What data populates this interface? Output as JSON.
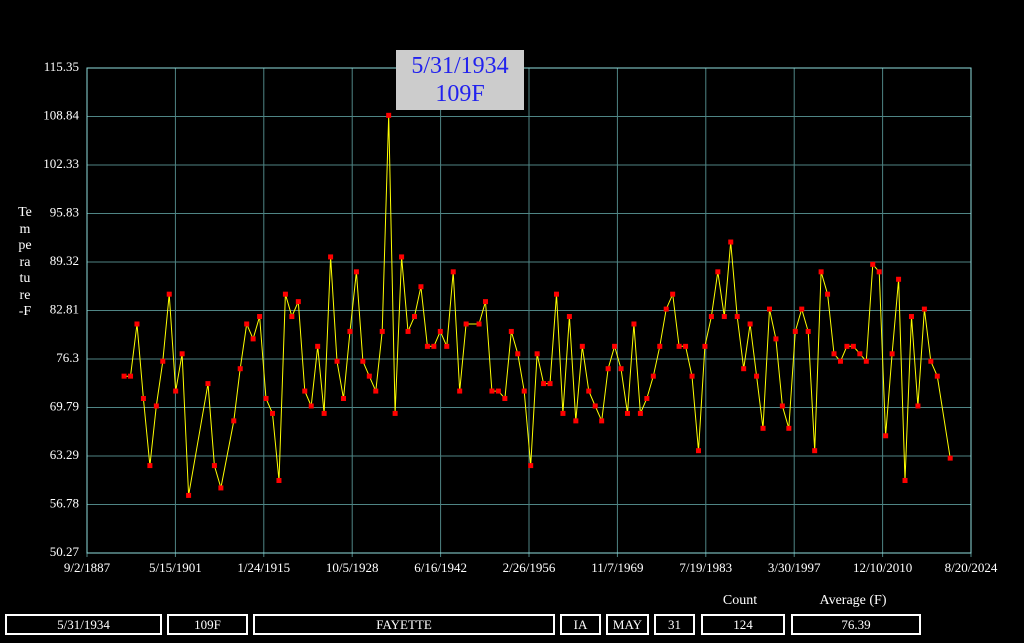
{
  "chart_data": {
    "type": "line",
    "ylabel": "Temperature-F",
    "annotation": [
      "5/31/1934",
      "109F"
    ],
    "line_color": "#ffff00",
    "marker_color": "#ff0000",
    "grid": true,
    "xlim": [
      "9/2/1887",
      "8/20/2024"
    ],
    "xticks": [
      "9/2/1887",
      "5/15/1901",
      "1/24/1915",
      "10/5/1928",
      "6/16/1942",
      "2/26/1956",
      "11/7/1969",
      "7/19/1983",
      "3/30/1997",
      "12/10/2010",
      "8/20/2024"
    ],
    "ylim": [
      50.27,
      115.35
    ],
    "yticks": [
      50.27,
      56.78,
      63.29,
      69.79,
      76.3,
      82.81,
      89.32,
      95.83,
      102.33,
      108.84,
      115.35
    ],
    "x": [
      "5/31/1893",
      "5/31/1894",
      "5/31/1895",
      "5/31/1896",
      "5/31/1897",
      "5/31/1898",
      "5/31/1899",
      "5/31/1900",
      "5/31/1901",
      "5/31/1902",
      "5/31/1903",
      "5/31/1906",
      "5/31/1907",
      "5/31/1908",
      "5/31/1910",
      "5/31/1911",
      "5/31/1912",
      "5/31/1913",
      "5/31/1914",
      "5/31/1915",
      "5/31/1916",
      "5/31/1917",
      "5/31/1918",
      "5/31/1919",
      "5/31/1920",
      "5/31/1921",
      "5/31/1922",
      "5/31/1923",
      "5/31/1924",
      "5/31/1925",
      "5/31/1926",
      "5/31/1927",
      "5/31/1928",
      "5/31/1929",
      "5/31/1930",
      "5/31/1931",
      "5/31/1932",
      "5/31/1933",
      "5/31/1934",
      "5/31/1935",
      "5/31/1936",
      "5/31/1937",
      "5/31/1938",
      "5/31/1939",
      "5/31/1940",
      "5/31/1941",
      "5/31/1942",
      "5/31/1943",
      "5/31/1944",
      "5/31/1945",
      "5/31/1946",
      "5/31/1948",
      "5/31/1949",
      "5/31/1950",
      "5/31/1951",
      "5/31/1952",
      "5/31/1953",
      "5/31/1954",
      "5/31/1955",
      "5/31/1956",
      "5/31/1957",
      "5/31/1958",
      "5/31/1959",
      "5/31/1960",
      "5/31/1961",
      "5/31/1962",
      "5/31/1963",
      "5/31/1964",
      "5/31/1965",
      "5/31/1966",
      "5/31/1967",
      "5/31/1968",
      "5/31/1969",
      "5/31/1970",
      "5/31/1971",
      "5/31/1972",
      "5/31/1973",
      "5/31/1974",
      "5/31/1975",
      "5/31/1976",
      "5/31/1977",
      "5/31/1978",
      "5/31/1979",
      "5/31/1980",
      "5/31/1981",
      "5/31/1982",
      "5/31/1983",
      "5/31/1984",
      "5/31/1985",
      "5/31/1986",
      "5/31/1987",
      "5/31/1988",
      "5/31/1989",
      "5/31/1990",
      "5/31/1991",
      "5/31/1992",
      "5/31/1993",
      "5/31/1994",
      "5/31/1995",
      "5/31/1996",
      "5/31/1997",
      "5/31/1998",
      "5/31/1999",
      "5/31/2000",
      "5/31/2001",
      "5/31/2002",
      "5/31/2003",
      "5/31/2004",
      "5/31/2005",
      "5/31/2006",
      "5/31/2007",
      "5/31/2008",
      "5/31/2009",
      "5/31/2010",
      "5/31/2011",
      "5/31/2012",
      "5/31/2013",
      "5/31/2014",
      "5/31/2015",
      "5/31/2016",
      "5/31/2017",
      "5/31/2018",
      "5/31/2019",
      "5/31/2021"
    ],
    "values": [
      74,
      74,
      81,
      71,
      62,
      70,
      76,
      85,
      72,
      77,
      58,
      73,
      62,
      59,
      68,
      75,
      81,
      79,
      82,
      71,
      69,
      60,
      85,
      82,
      84,
      72,
      70,
      78,
      69,
      90,
      76,
      71,
      80,
      88,
      76,
      74,
      72,
      80,
      109,
      69,
      90,
      80,
      82,
      86,
      78,
      78,
      80,
      78,
      88,
      72,
      81,
      81,
      84,
      72,
      72,
      71,
      80,
      77,
      72,
      62,
      77,
      73,
      73,
      85,
      69,
      82,
      68,
      78,
      72,
      70,
      68,
      75,
      78,
      75,
      69,
      81,
      69,
      71,
      74,
      78,
      83,
      85,
      78,
      78,
      74,
      64,
      78,
      82,
      88,
      82,
      92,
      82,
      75,
      81,
      74,
      67,
      83,
      79,
      70,
      67,
      80,
      83,
      80,
      64,
      88,
      85,
      77,
      76,
      78,
      78,
      77,
      76,
      89,
      88,
      66,
      77,
      87,
      60,
      82,
      70,
      83,
      76,
      74,
      63
    ]
  },
  "footer": {
    "date": "5/31/1934",
    "temp": "109F",
    "station": "FAYETTE",
    "state": "IA",
    "month": "MAY",
    "day": 31,
    "count_label": "Count",
    "count": 124,
    "average_label": "Average (F)",
    "average": 76.39
  }
}
